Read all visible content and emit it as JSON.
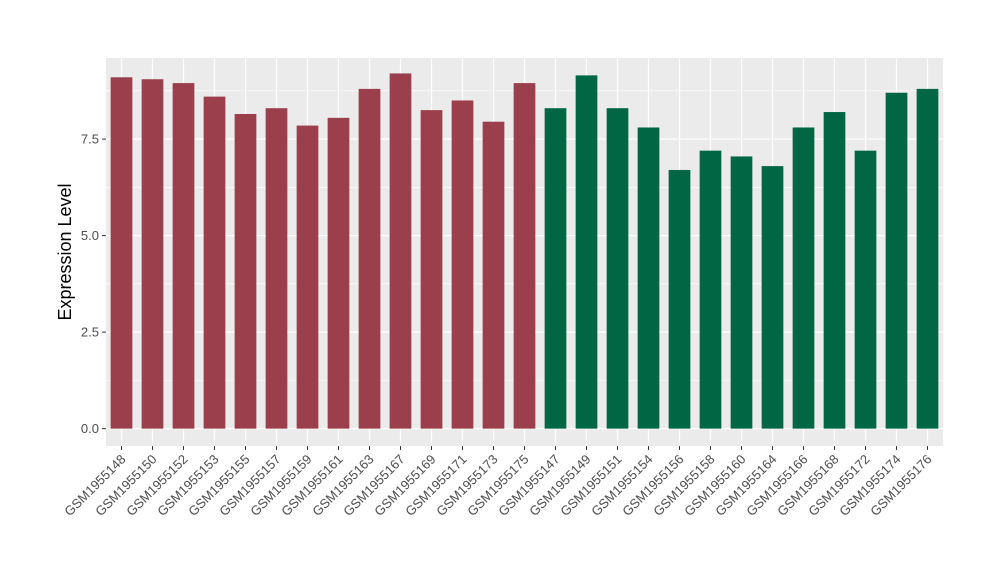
{
  "chart_data": {
    "type": "bar",
    "title": "",
    "xlabel": "",
    "ylabel": "Expression Level",
    "ylim": [
      -0.45,
      9.6
    ],
    "yticks": [
      0.0,
      2.5,
      5.0,
      7.5
    ],
    "ytick_labels": [
      "0.0",
      "2.5",
      "5.0",
      "7.5"
    ],
    "grid": true,
    "background_color": "#ebebeb",
    "grid_color": "#ffffff",
    "colors": {
      "group_1": "#9b3f4d",
      "group_2": "#006644"
    },
    "categories": [
      "GSM1955148",
      "GSM1955150",
      "GSM1955152",
      "GSM1955153",
      "GSM1955155",
      "GSM1955157",
      "GSM1955159",
      "GSM1955161",
      "GSM1955163",
      "GSM1955167",
      "GSM1955169",
      "GSM1955171",
      "GSM1955173",
      "GSM1955175",
      "GSM1955147",
      "GSM1955149",
      "GSM1955151",
      "GSM1955154",
      "GSM1955156",
      "GSM1955158",
      "GSM1955160",
      "GSM1955164",
      "GSM1955166",
      "GSM1955168",
      "GSM1955172",
      "GSM1955174",
      "GSM1955176"
    ],
    "values": [
      9.1,
      9.05,
      8.95,
      8.6,
      8.15,
      8.3,
      7.85,
      8.05,
      8.8,
      9.2,
      8.25,
      8.5,
      7.95,
      8.95,
      8.3,
      9.15,
      8.3,
      7.8,
      6.7,
      7.2,
      7.05,
      6.8,
      7.8,
      8.2,
      7.2,
      8.7,
      8.8
    ],
    "bar_groups": [
      1,
      1,
      1,
      1,
      1,
      1,
      1,
      1,
      1,
      1,
      1,
      1,
      1,
      1,
      2,
      2,
      2,
      2,
      2,
      2,
      2,
      2,
      2,
      2,
      2,
      2,
      2
    ]
  }
}
